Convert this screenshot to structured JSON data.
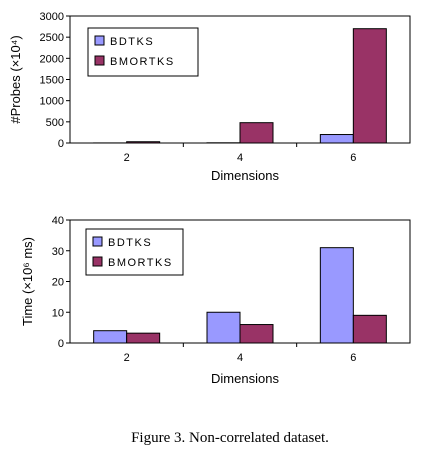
{
  "figure": {
    "caption": "Figure 3. Non-correlated dataset."
  },
  "colors": {
    "BDTKS": "#9999ff",
    "BMORTKS": "#993366"
  },
  "chart_data": [
    {
      "type": "bar",
      "categories": [
        "2",
        "4",
        "6"
      ],
      "xlabel": "Dimensions",
      "ylabel": "#Probes (×10⁴)",
      "ylim": [
        0,
        3000
      ],
      "yticks": [
        0,
        500,
        1000,
        1500,
        2000,
        2500,
        3000
      ],
      "grid": false,
      "legend_position": "top-left",
      "series": [
        {
          "name": "BDTKS",
          "values": [
            2,
            5,
            200
          ]
        },
        {
          "name": "BMORTKS",
          "values": [
            30,
            480,
            2700
          ]
        }
      ]
    },
    {
      "type": "bar",
      "categories": [
        "2",
        "4",
        "6"
      ],
      "xlabel": "Dimensions",
      "ylabel": "Time (×10⁶ ms)",
      "ylim": [
        0,
        40
      ],
      "yticks": [
        0,
        10,
        20,
        30,
        40
      ],
      "grid": false,
      "legend_position": "top-left",
      "series": [
        {
          "name": "BDTKS",
          "values": [
            4,
            10,
            31
          ]
        },
        {
          "name": "BMORTKS",
          "values": [
            3.2,
            6,
            9
          ]
        }
      ]
    }
  ]
}
